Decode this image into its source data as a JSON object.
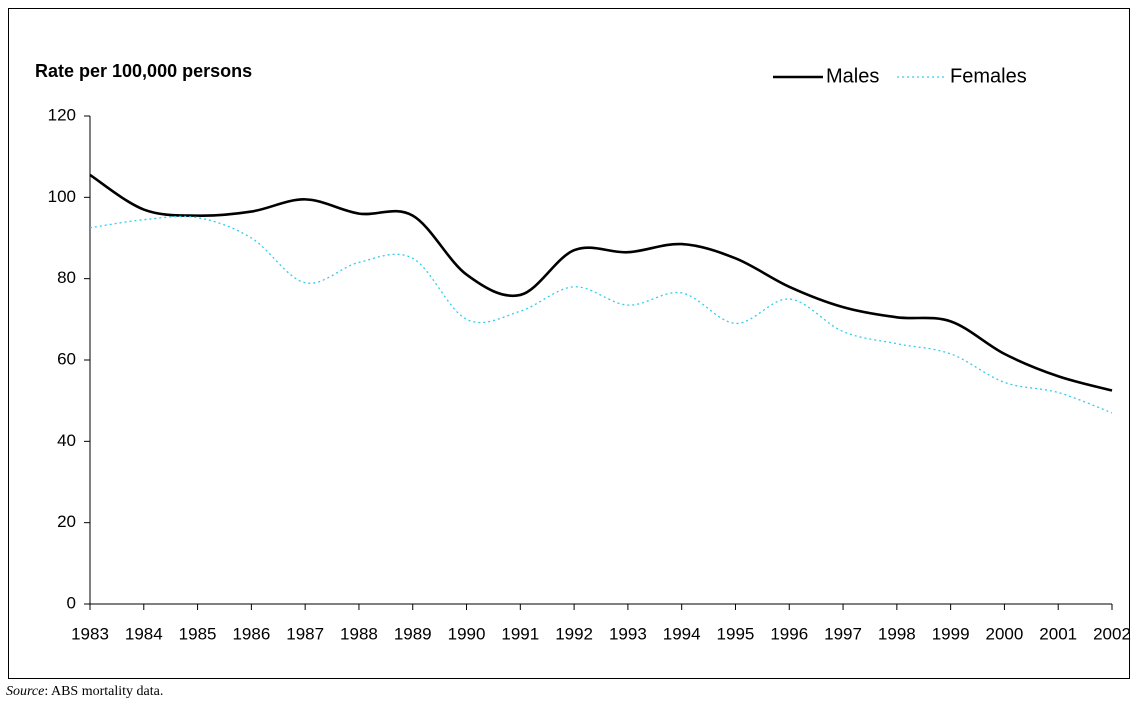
{
  "chart_data": {
    "type": "line",
    "axis_title": "Rate per 100,000 persons",
    "categories": [
      "1983",
      "1984",
      "1985",
      "1986",
      "1987",
      "1988",
      "1989",
      "1990",
      "1991",
      "1992",
      "1993",
      "1994",
      "1995",
      "1996",
      "1997",
      "1998",
      "1999",
      "2000",
      "2001",
      "2002"
    ],
    "series": [
      {
        "name": "Males",
        "color": "#000000",
        "dash": "solid",
        "values": [
          105.5,
          97,
          95.5,
          96.5,
          99.5,
          96,
          95.5,
          81,
          76,
          87,
          86.5,
          88.5,
          85,
          78,
          73,
          70.5,
          69.5,
          61.5,
          56,
          52.5
        ]
      },
      {
        "name": "Females",
        "color": "#33ccee",
        "dash": "dotted",
        "values": [
          92.5,
          94.5,
          95,
          90,
          79,
          84,
          85,
          70,
          72,
          78,
          73.5,
          76.5,
          69,
          75,
          67,
          64,
          61.5,
          54.5,
          52,
          47
        ]
      }
    ],
    "ylim": [
      0,
      120
    ],
    "yticks": [
      0,
      20,
      40,
      60,
      80,
      100,
      120
    ],
    "grid": false,
    "smooth": true,
    "legend": "top-right",
    "source": {
      "label": "Source",
      "text": ": ABS mortality data."
    }
  }
}
